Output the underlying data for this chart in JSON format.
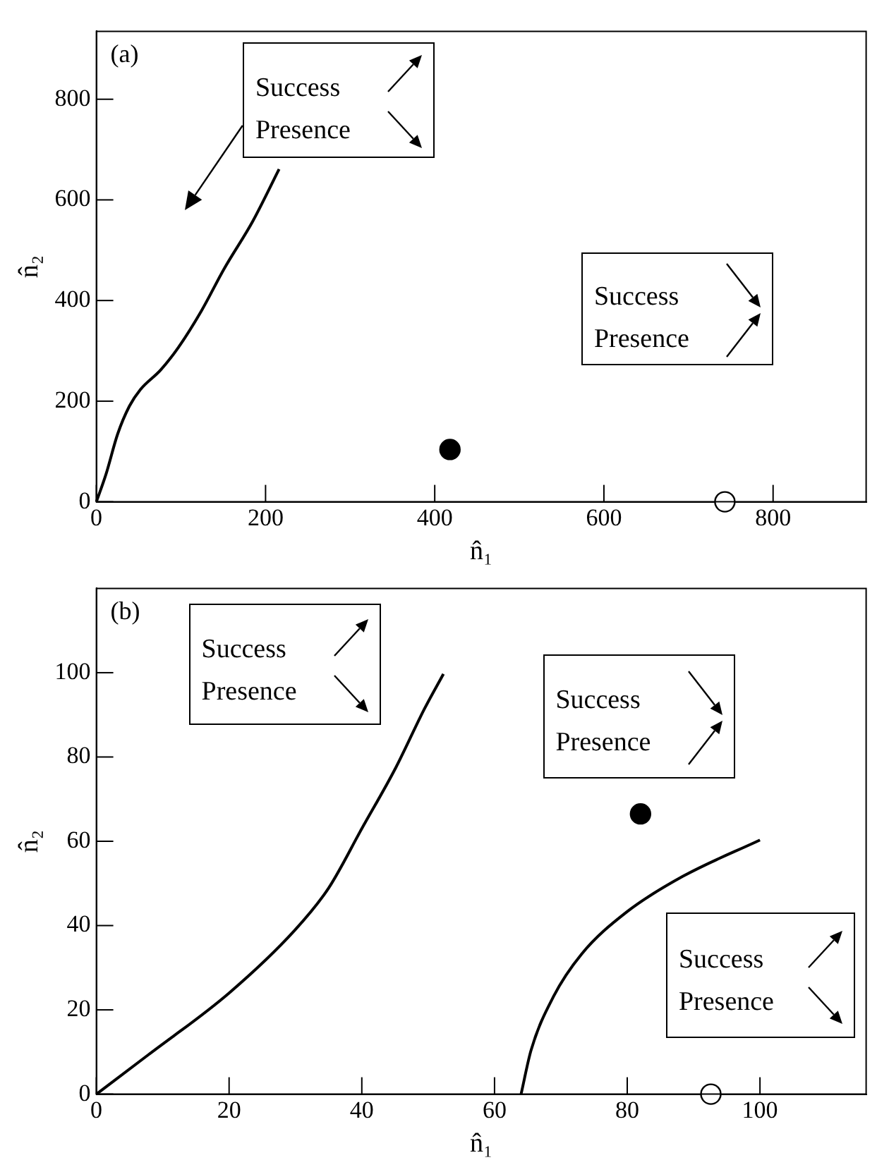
{
  "chart_data": [
    {
      "type": "line",
      "xlabel": "n̂₁",
      "ylabel": "n̂₂",
      "xlim": [
        0,
        910
      ],
      "ylim": [
        0,
        935
      ],
      "xticks": [
        0,
        200,
        400,
        600,
        800
      ],
      "yticks": [
        0,
        200,
        400,
        600,
        800
      ],
      "annotations": [
        "(a)",
        "Success",
        "Presence",
        "Success",
        "Presence"
      ],
      "series": [
        {
          "color": "#000000",
          "marker": "none",
          "x": [
            0,
            11.6,
            25,
            39,
            52,
            76,
            97,
            124,
            151,
            185,
            216
          ],
          "values": [
            0,
            56,
            134,
            190,
            223,
            262,
            307,
            379,
            463,
            558,
            661
          ]
        },
        {
          "type": "scatter",
          "color": "#000000",
          "marker": "circle",
          "x": [
            418
          ],
          "values": [
            104
          ]
        },
        {
          "type": "scatter",
          "color": "#ffffff",
          "marker": "circle",
          "x": [
            743
          ],
          "values": [
            0
          ]
        }
      ]
    },
    {
      "type": "line",
      "xlabel": "n̂₁",
      "ylabel": "n̂₂",
      "xlim": [
        0,
        116
      ],
      "ylim": [
        0,
        120
      ],
      "xticks": [
        0,
        20,
        40,
        60,
        80,
        100
      ],
      "yticks": [
        0,
        20,
        40,
        60,
        80,
        100
      ],
      "annotations": [
        "(b)",
        "Success",
        "Presence",
        "Success",
        "Presence",
        "Success",
        "Presence"
      ],
      "series": [
        {
          "color": "#000000",
          "marker": "none",
          "x": [
            0,
            7.8,
            20,
            29.9,
            35,
            40,
            45.1,
            49.4,
            52.3
          ],
          "values": [
            0,
            9.3,
            24,
            38.9,
            48.9,
            63,
            77.4,
            91.3,
            99.7
          ]
        },
        {
          "color": "#000000",
          "marker": "none",
          "x": [
            64,
            65.5,
            68.9,
            73.1,
            79.9,
            88.4,
            100
          ],
          "values": [
            0,
            10.4,
            23.2,
            33.2,
            43.2,
            51.7,
            60.3
          ]
        },
        {
          "type": "scatter",
          "color": "#000000",
          "marker": "circle",
          "x": [
            82
          ],
          "values": [
            66.5
          ]
        },
        {
          "type": "scatter",
          "color": "#ffffff",
          "marker": "circle",
          "x": [
            92.6
          ],
          "values": [
            0
          ]
        }
      ]
    }
  ]
}
